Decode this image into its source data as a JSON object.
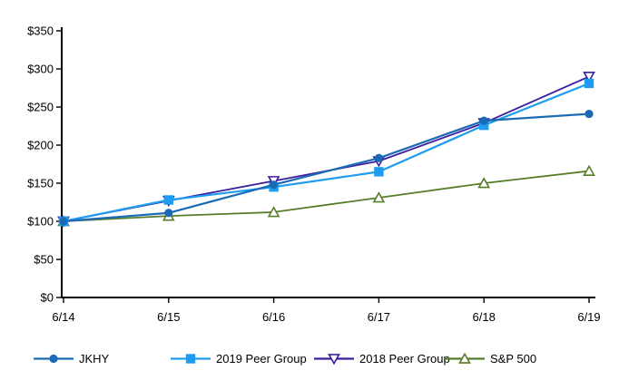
{
  "chart_data": {
    "type": "line",
    "title": "",
    "xlabel": "",
    "ylabel": "",
    "categories": [
      "6/14",
      "6/15",
      "6/16",
      "6/17",
      "6/18",
      "6/19"
    ],
    "series": [
      {
        "name": "JKHY",
        "color": "#1b6ab5",
        "marker": "circle",
        "marker_fill": "solid",
        "values": [
          100,
          111,
          148,
          183,
          232,
          241
        ]
      },
      {
        "name": "2019 Peer Group",
        "color": "#1e9df0",
        "marker": "square",
        "marker_fill": "solid",
        "values": [
          100,
          128,
          145,
          165,
          226,
          281
        ]
      },
      {
        "name": "2018 Peer Group",
        "color": "#3c1f9e",
        "marker": "triangle-down",
        "marker_fill": "open",
        "values": [
          100,
          127,
          153,
          179,
          229,
          290
        ]
      },
      {
        "name": "S&P 500",
        "color": "#577d2b",
        "marker": "triangle-up",
        "marker_fill": "open",
        "values": [
          100,
          107,
          112,
          131,
          150,
          166
        ]
      }
    ],
    "ylim": [
      0,
      350
    ],
    "ytick_step": 50,
    "ytick_labels": [
      "$0",
      "$50",
      "$100",
      "$150",
      "$200",
      "$250",
      "$300",
      "$350"
    ],
    "grid": false,
    "legend_position": "bottom",
    "axis_color": "#000000",
    "background_color": "#ffffff"
  }
}
